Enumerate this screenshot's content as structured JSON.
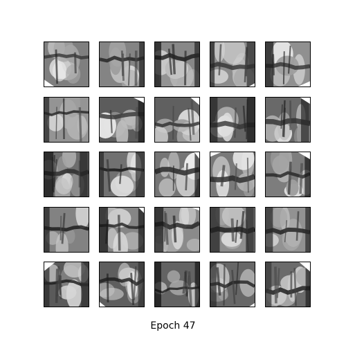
{
  "figure": {
    "caption": "Epoch 47",
    "grid": {
      "rows": 5,
      "cols": 5
    },
    "tile_style": "grayscale",
    "tile_content": "generated-image"
  }
}
